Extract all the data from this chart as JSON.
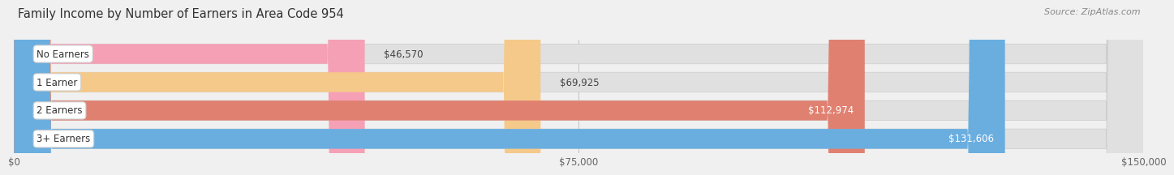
{
  "title": "Family Income by Number of Earners in Area Code 954",
  "source": "Source: ZipAtlas.com",
  "categories": [
    "No Earners",
    "1 Earner",
    "2 Earners",
    "3+ Earners"
  ],
  "values": [
    46570,
    69925,
    112974,
    131606
  ],
  "bar_colors": [
    "#f5a0b5",
    "#f5c98a",
    "#e08070",
    "#6aaee0"
  ],
  "x_max": 150000,
  "x_ticks": [
    0,
    75000,
    150000
  ],
  "x_tick_labels": [
    "$0",
    "$75,000",
    "$150,000"
  ],
  "background_color": "#f0f0f0",
  "bar_bg_color": "#e0e0e0",
  "title_fontsize": 10.5,
  "source_fontsize": 8,
  "label_fontsize": 8.5,
  "category_fontsize": 8.5,
  "value_inside_threshold": 95000
}
